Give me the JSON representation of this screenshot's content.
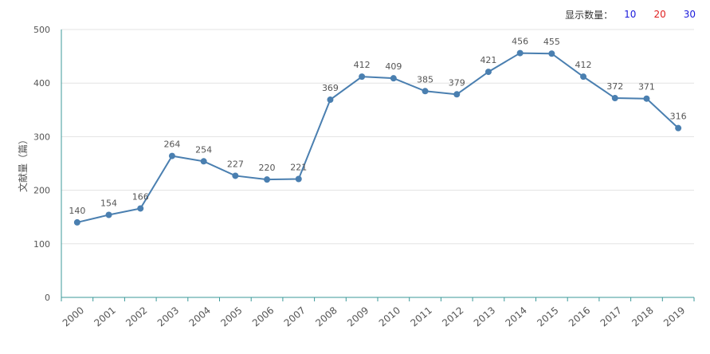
{
  "toolbar": {
    "label": "显示数量：",
    "options": [
      {
        "label": "10",
        "color": "#1a1adb"
      },
      {
        "label": "20",
        "color": "#e02020"
      },
      {
        "label": "30",
        "color": "#1a1adb"
      }
    ]
  },
  "colors": {
    "line": "#4a7fb0",
    "axis": "#3b9a9a",
    "grid": "#e3e3e3",
    "text": "#555555"
  },
  "chart_data": {
    "type": "line",
    "title": "",
    "xlabel": "",
    "ylabel": "文献量（篇）",
    "ylim": [
      0,
      500
    ],
    "yticks": [
      0,
      100,
      200,
      300,
      400,
      500
    ],
    "grid": true,
    "categories": [
      "2000",
      "2001",
      "2002",
      "2003",
      "2004",
      "2005",
      "2006",
      "2007",
      "2008",
      "2009",
      "2010",
      "2011",
      "2012",
      "2013",
      "2014",
      "2015",
      "2016",
      "2017",
      "2018",
      "2019"
    ],
    "series": [
      {
        "name": "文献量",
        "values": [
          140,
          154,
          166,
          264,
          254,
          227,
          220,
          221,
          369,
          412,
          409,
          385,
          379,
          421,
          456,
          455,
          412,
          372,
          371,
          316
        ]
      }
    ]
  }
}
